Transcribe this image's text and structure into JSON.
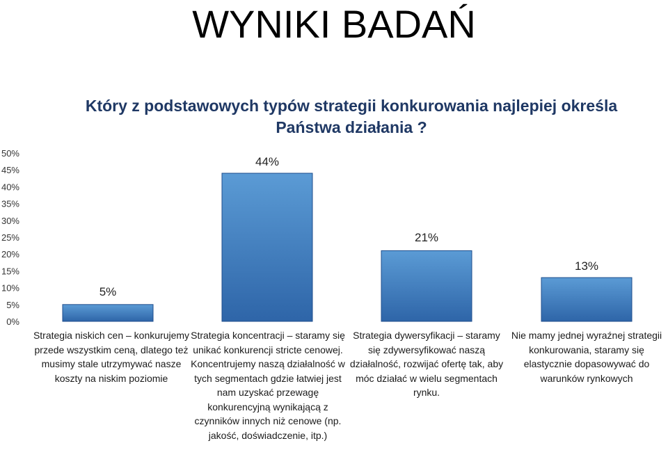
{
  "page": {
    "title": "WYNIKI BADAŃ",
    "subtitle": "Który z podstawowych typów strategii konkurowania najlepiej określa Państwa działania ?"
  },
  "chart_data": {
    "type": "bar",
    "categories": [
      "Strategia niskich cen – konkurujemy przede wszystkim ceną, dlatego też musimy stale utrzymywać nasze koszty na niskim poziomie",
      "Strategia koncentracji – staramy się unikać konkurencji stricte cenowej. Koncentrujemy naszą działalność w tych segmentach gdzie łatwiej jest nam uzyskać przewagę konkurencyjną wynikającą z czynników innych niż cenowe (np. jakość, doświadczenie, itp.)",
      "Strategia dywersyfikacji – staramy się zdywersyfikować naszą działalność, rozwijać ofertę tak, aby móc działać w wielu segmentach rynku.",
      "Nie mamy jednej wyraźnej strategii konkurowania, staramy się elastycznie dopasowywać do warunków rynkowych"
    ],
    "values": [
      5,
      44,
      21,
      13
    ],
    "data_labels": [
      "5%",
      "44%",
      "21%",
      "13%"
    ],
    "y_ticks": [
      "0%",
      "5%",
      "10%",
      "15%",
      "20%",
      "25%",
      "30%",
      "35%",
      "40%",
      "45%",
      "50%"
    ],
    "ylim": [
      0,
      50
    ],
    "grid": false,
    "legend": "none",
    "colors": {
      "bar_top": "#5b9bd5",
      "bar_bottom": "#2e65a8",
      "bar_border": "#1f4e8c"
    }
  }
}
